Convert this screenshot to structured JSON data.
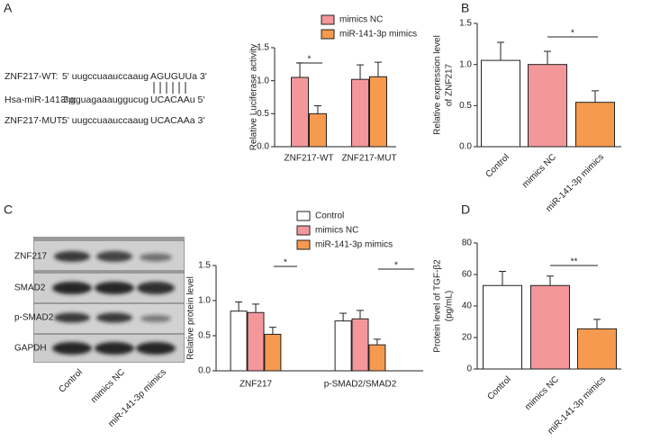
{
  "panels": [
    "A",
    "B",
    "C",
    "D"
  ],
  "sequences": [
    {
      "name": "ZNF217-WT:",
      "parts": [
        {
          "text": "5' uugccuaauccaaug",
          "color": "#222222"
        },
        {
          "text": "AGUGUU",
          "color": "#222222"
        },
        {
          "text": "a 3'",
          "color": "#222222"
        }
      ]
    },
    {
      "name": "Hsa-miR-141-3p:",
      "parts": [
        {
          "text": "3' gguagaaauggucug",
          "color": "#222222"
        },
        {
          "text": "UCACAA",
          "color": "#e8291c"
        },
        {
          "text": "u 5'",
          "color": "#222222"
        }
      ]
    },
    {
      "name": "ZNF217-MUT:",
      "parts": [
        {
          "text": "5' uugccuaauccaaug",
          "color": "#222222"
        },
        {
          "text": "UCACAA",
          "color": "#e8291c"
        },
        {
          "text": "a 3'",
          "color": "#222222"
        }
      ]
    }
  ],
  "blot": {
    "rows": [
      "ZNF217",
      "SMAD2",
      "p-SMAD2",
      "GAPDH"
    ],
    "columns": [
      "Control",
      "mimics NC",
      "miR-141-3p mimics"
    ]
  },
  "chart_data": [
    {
      "type": "bar",
      "ylabel": [
        "Relative Luciferase activity"
      ],
      "categories": [
        "ZNF217-WT",
        "ZNF217-MUT"
      ],
      "series": [
        {
          "name": "mimics NC",
          "color": "#f4979b",
          "values": [
            1.05,
            1.02
          ],
          "errors": [
            0.22,
            0.22
          ]
        },
        {
          "name": "miR-141-3p mimics",
          "color": "#f59a4f",
          "values": [
            0.5,
            1.06
          ],
          "errors": [
            0.12,
            0.22
          ]
        }
      ],
      "ylim": [
        0,
        1.5
      ],
      "yticks": [
        {
          "value": 0,
          "label": "0.0"
        },
        0.5,
        {
          "value": 1,
          "label": "1.0"
        },
        1.5
      ],
      "annotations": [
        "*"
      ]
    },
    {
      "type": "bar",
      "ylabel": [
        "Relative expression level",
        "of ZNF217"
      ],
      "categories": [
        "Control",
        "mimics NC",
        "miR-141-3p mimics"
      ],
      "values": [
        1.05,
        1.0,
        0.54
      ],
      "errors": [
        0.22,
        0.16,
        0.14
      ],
      "colors": [
        "#ffffff",
        "#f4979b",
        "#f59a4f"
      ],
      "ylim": [
        0,
        1.5
      ],
      "yticks": [
        {
          "value": 0,
          "label": "0.0"
        },
        0.5,
        {
          "value": 1,
          "label": "1.0"
        },
        1.5
      ],
      "annotations": [
        "*"
      ]
    },
    {
      "type": "bar",
      "ylabel": [
        "Relative protein level"
      ],
      "categories": [
        "ZNF217",
        "p-SMAD2/SMAD2"
      ],
      "series": [
        {
          "name": "Control",
          "color": "#ffffff",
          "values": [
            0.85,
            0.71
          ],
          "errors": [
            0.13,
            0.11
          ]
        },
        {
          "name": "mimics NC",
          "color": "#f4979b",
          "values": [
            0.83,
            0.74
          ],
          "errors": [
            0.12,
            0.12
          ]
        },
        {
          "name": "miR-141-3p mimics",
          "color": "#f59a4f",
          "values": [
            0.52,
            0.37
          ],
          "errors": [
            0.1,
            0.08
          ]
        }
      ],
      "ylim": [
        0,
        1.5
      ],
      "yticks": [
        {
          "value": 0,
          "label": "0.0"
        },
        0.5,
        {
          "value": 1,
          "label": "1.0"
        },
        1.5
      ],
      "annotations": [
        "*",
        "*"
      ]
    },
    {
      "type": "bar",
      "ylabel": [
        "Protein level of TGF-β2",
        "(pg/mL)"
      ],
      "categories": [
        "Control",
        "mimics NC",
        "miR-141-3p mimics"
      ],
      "values": [
        53,
        53,
        25.5
      ],
      "errors": [
        9,
        6,
        6
      ],
      "colors": [
        "#ffffff",
        "#f4979b",
        "#f59a4f"
      ],
      "ylim": [
        0,
        80
      ],
      "yticks": [
        0,
        20,
        40,
        60,
        80
      ],
      "annotations": [
        "**"
      ]
    }
  ]
}
